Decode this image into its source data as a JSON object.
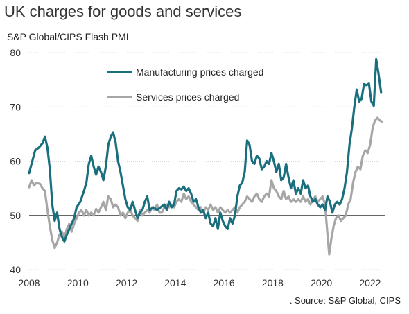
{
  "title": "UK charges for goods and services",
  "subtitle": "S&P Global/CIPS Flash PMI",
  "source": ". Source: S&P Global, CIPS",
  "chart_data": {
    "type": "line",
    "title": "UK charges for goods and services",
    "ylabel": "S&P Global/CIPS Flash PMI",
    "xlim": [
      2008,
      2022.6
    ],
    "ylim": [
      40,
      80
    ],
    "y_ticks": [
      40,
      50,
      60,
      70,
      80
    ],
    "x_ticks": [
      2008,
      2010,
      2012,
      2014,
      2016,
      2018,
      2020,
      2022
    ],
    "grid": true,
    "reference_line": 50,
    "legend": "top-left",
    "series": [
      {
        "name": "Manufacturing prices charged",
        "color": "#1a6f7f",
        "points": [
          [
            2008.0,
            57.8
          ],
          [
            2008.1,
            59.5
          ],
          [
            2008.25,
            62
          ],
          [
            2008.4,
            62.5
          ],
          [
            2008.55,
            63.3
          ],
          [
            2008.65,
            64.5
          ],
          [
            2008.75,
            62.5
          ],
          [
            2008.85,
            58.5
          ],
          [
            2008.95,
            52
          ],
          [
            2009.05,
            49
          ],
          [
            2009.15,
            50.5
          ],
          [
            2009.25,
            47.5
          ],
          [
            2009.35,
            46
          ],
          [
            2009.45,
            45.2
          ],
          [
            2009.55,
            46.5
          ],
          [
            2009.65,
            47.5
          ],
          [
            2009.75,
            48.5
          ],
          [
            2009.85,
            49.5
          ],
          [
            2009.95,
            51.5
          ],
          [
            2010.1,
            52.5
          ],
          [
            2010.25,
            54.5
          ],
          [
            2010.35,
            56
          ],
          [
            2010.45,
            59.5
          ],
          [
            2010.55,
            61
          ],
          [
            2010.65,
            59
          ],
          [
            2010.75,
            57.5
          ],
          [
            2010.85,
            59
          ],
          [
            2010.95,
            58
          ],
          [
            2011.05,
            56.5
          ],
          [
            2011.15,
            59
          ],
          [
            2011.25,
            63
          ],
          [
            2011.35,
            64.5
          ],
          [
            2011.45,
            65.3
          ],
          [
            2011.55,
            63.5
          ],
          [
            2011.65,
            60
          ],
          [
            2011.75,
            58
          ],
          [
            2011.85,
            55.5
          ],
          [
            2011.95,
            53
          ],
          [
            2012.05,
            51.5
          ],
          [
            2012.15,
            51
          ],
          [
            2012.25,
            52.5
          ],
          [
            2012.35,
            51
          ],
          [
            2012.45,
            49.5
          ],
          [
            2012.55,
            50.5
          ],
          [
            2012.65,
            51
          ],
          [
            2012.75,
            52.5
          ],
          [
            2012.85,
            53.5
          ],
          [
            2012.95,
            51
          ],
          [
            2013.1,
            51.5
          ],
          [
            2013.25,
            51
          ],
          [
            2013.4,
            51.5
          ],
          [
            2013.55,
            52
          ],
          [
            2013.65,
            51
          ],
          [
            2013.75,
            52.5
          ],
          [
            2013.85,
            51.5
          ],
          [
            2013.95,
            52
          ],
          [
            2014.05,
            54.5
          ],
          [
            2014.15,
            55
          ],
          [
            2014.25,
            54.8
          ],
          [
            2014.35,
            55.3
          ],
          [
            2014.45,
            54.5
          ],
          [
            2014.55,
            55
          ],
          [
            2014.65,
            54
          ],
          [
            2014.75,
            52.5
          ],
          [
            2014.85,
            53
          ],
          [
            2014.95,
            51.5
          ],
          [
            2015.05,
            50.5
          ],
          [
            2015.15,
            51
          ],
          [
            2015.25,
            49.5
          ],
          [
            2015.35,
            50.5
          ],
          [
            2015.45,
            48.5
          ],
          [
            2015.55,
            48
          ],
          [
            2015.65,
            49.5
          ],
          [
            2015.75,
            47.5
          ],
          [
            2015.85,
            50.5
          ],
          [
            2015.95,
            49
          ],
          [
            2016.05,
            48
          ],
          [
            2016.15,
            47.5
          ],
          [
            2016.25,
            49.5
          ],
          [
            2016.35,
            48.5
          ],
          [
            2016.45,
            50
          ],
          [
            2016.55,
            53.5
          ],
          [
            2016.65,
            55.5
          ],
          [
            2016.75,
            56
          ],
          [
            2016.85,
            58
          ],
          [
            2016.95,
            63.8
          ],
          [
            2017.05,
            63
          ],
          [
            2017.15,
            60
          ],
          [
            2017.25,
            59.5
          ],
          [
            2017.35,
            61
          ],
          [
            2017.45,
            60.5
          ],
          [
            2017.55,
            58.5
          ],
          [
            2017.65,
            59
          ],
          [
            2017.75,
            60
          ],
          [
            2017.85,
            59.5
          ],
          [
            2017.95,
            61.5
          ],
          [
            2018.05,
            60
          ],
          [
            2018.15,
            58
          ],
          [
            2018.25,
            59.5
          ],
          [
            2018.35,
            56.5
          ],
          [
            2018.45,
            57
          ],
          [
            2018.55,
            59.5
          ],
          [
            2018.65,
            57
          ],
          [
            2018.75,
            55
          ],
          [
            2018.85,
            56.5
          ],
          [
            2018.95,
            54
          ],
          [
            2019.05,
            55
          ],
          [
            2019.15,
            54
          ],
          [
            2019.25,
            56.5
          ],
          [
            2019.35,
            55
          ],
          [
            2019.45,
            55.5
          ],
          [
            2019.55,
            53.5
          ],
          [
            2019.65,
            52.5
          ],
          [
            2019.75,
            53
          ],
          [
            2019.85,
            52
          ],
          [
            2019.95,
            51.5
          ],
          [
            2020.05,
            52
          ],
          [
            2020.15,
            51
          ],
          [
            2020.25,
            53.5
          ],
          [
            2020.35,
            52.5
          ],
          [
            2020.45,
            50.5
          ],
          [
            2020.55,
            52
          ],
          [
            2020.65,
            52.5
          ],
          [
            2020.75,
            52
          ],
          [
            2020.85,
            53
          ],
          [
            2020.95,
            55
          ],
          [
            2021.05,
            58
          ],
          [
            2021.15,
            63
          ],
          [
            2021.25,
            66
          ],
          [
            2021.35,
            70
          ],
          [
            2021.45,
            73.2
          ],
          [
            2021.55,
            71
          ],
          [
            2021.65,
            71.5
          ],
          [
            2021.75,
            74.2
          ],
          [
            2021.85,
            74
          ],
          [
            2021.95,
            74.3
          ],
          [
            2022.05,
            71
          ],
          [
            2022.15,
            70.2
          ],
          [
            2022.25,
            78.8
          ],
          [
            2022.35,
            76
          ],
          [
            2022.45,
            72.7
          ]
        ]
      },
      {
        "name": "Services prices charged",
        "color": "#a6a6a6",
        "points": [
          [
            2008.0,
            55.2
          ],
          [
            2008.1,
            56.5
          ],
          [
            2008.2,
            55.5
          ],
          [
            2008.3,
            56
          ],
          [
            2008.45,
            55.8
          ],
          [
            2008.55,
            55
          ],
          [
            2008.65,
            54.5
          ],
          [
            2008.75,
            51
          ],
          [
            2008.85,
            48
          ],
          [
            2008.95,
            45.5
          ],
          [
            2009.05,
            44
          ],
          [
            2009.15,
            45
          ],
          [
            2009.25,
            46.5
          ],
          [
            2009.35,
            47
          ],
          [
            2009.45,
            46
          ],
          [
            2009.55,
            47.5
          ],
          [
            2009.65,
            48.5
          ],
          [
            2009.75,
            47
          ],
          [
            2009.85,
            48.5
          ],
          [
            2009.95,
            49.5
          ],
          [
            2010.05,
            50.5
          ],
          [
            2010.15,
            51
          ],
          [
            2010.25,
            50
          ],
          [
            2010.35,
            51
          ],
          [
            2010.45,
            50
          ],
          [
            2010.55,
            50.5
          ],
          [
            2010.65,
            50
          ],
          [
            2010.75,
            51.2
          ],
          [
            2010.85,
            50.5
          ],
          [
            2010.95,
            51.5
          ],
          [
            2011.05,
            52.5
          ],
          [
            2011.15,
            51
          ],
          [
            2011.25,
            53.5
          ],
          [
            2011.35,
            53
          ],
          [
            2011.45,
            51.5
          ],
          [
            2011.55,
            52
          ],
          [
            2011.65,
            51.5
          ],
          [
            2011.75,
            50
          ],
          [
            2011.85,
            50.5
          ],
          [
            2011.95,
            49.5
          ],
          [
            2012.05,
            50.5
          ],
          [
            2012.15,
            51
          ],
          [
            2012.25,
            50
          ],
          [
            2012.35,
            49.5
          ],
          [
            2012.45,
            49
          ],
          [
            2012.55,
            51
          ],
          [
            2012.65,
            50
          ],
          [
            2012.75,
            50.5
          ],
          [
            2012.85,
            51
          ],
          [
            2012.95,
            50.5
          ],
          [
            2013.05,
            51.5
          ],
          [
            2013.15,
            51
          ],
          [
            2013.25,
            52
          ],
          [
            2013.35,
            50.5
          ],
          [
            2013.45,
            50.5
          ],
          [
            2013.55,
            51.5
          ],
          [
            2013.65,
            52
          ],
          [
            2013.75,
            51.5
          ],
          [
            2013.85,
            52
          ],
          [
            2013.95,
            51.5
          ],
          [
            2014.05,
            52.5
          ],
          [
            2014.15,
            53
          ],
          [
            2014.25,
            52.5
          ],
          [
            2014.35,
            54
          ],
          [
            2014.45,
            53
          ],
          [
            2014.55,
            53.5
          ],
          [
            2014.65,
            52.5
          ],
          [
            2014.75,
            52
          ],
          [
            2014.85,
            51.5
          ],
          [
            2014.95,
            51
          ],
          [
            2015.05,
            51.5
          ],
          [
            2015.15,
            50.5
          ],
          [
            2015.25,
            51.5
          ],
          [
            2015.35,
            51
          ],
          [
            2015.45,
            52
          ],
          [
            2015.55,
            51
          ],
          [
            2015.65,
            51.5
          ],
          [
            2015.75,
            50.5
          ],
          [
            2015.85,
            51.5
          ],
          [
            2015.95,
            51
          ],
          [
            2016.05,
            50.5
          ],
          [
            2016.15,
            51
          ],
          [
            2016.25,
            50.5
          ],
          [
            2016.35,
            51
          ],
          [
            2016.45,
            51.5
          ],
          [
            2016.55,
            50.5
          ],
          [
            2016.65,
            51.5
          ],
          [
            2016.75,
            52
          ],
          [
            2016.85,
            52.5
          ],
          [
            2016.95,
            53.5
          ],
          [
            2017.05,
            53
          ],
          [
            2017.15,
            52.5
          ],
          [
            2017.25,
            53.5
          ],
          [
            2017.35,
            54
          ],
          [
            2017.45,
            53
          ],
          [
            2017.55,
            52.5
          ],
          [
            2017.65,
            53.5
          ],
          [
            2017.75,
            54
          ],
          [
            2017.85,
            53.5
          ],
          [
            2017.95,
            56.5
          ],
          [
            2018.05,
            55
          ],
          [
            2018.15,
            54.5
          ],
          [
            2018.25,
            53.5
          ],
          [
            2018.35,
            53
          ],
          [
            2018.45,
            54.5
          ],
          [
            2018.55,
            53
          ],
          [
            2018.65,
            53.5
          ],
          [
            2018.75,
            52.5
          ],
          [
            2018.85,
            53
          ],
          [
            2018.95,
            52.5
          ],
          [
            2019.05,
            53
          ],
          [
            2019.15,
            52.5
          ],
          [
            2019.25,
            53.5
          ],
          [
            2019.35,
            52.5
          ],
          [
            2019.45,
            53
          ],
          [
            2019.55,
            52
          ],
          [
            2019.65,
            53
          ],
          [
            2019.75,
            53.5
          ],
          [
            2019.85,
            52.5
          ],
          [
            2019.95,
            53
          ],
          [
            2020.05,
            53.5
          ],
          [
            2020.15,
            52
          ],
          [
            2020.25,
            46.5
          ],
          [
            2020.32,
            42.8
          ],
          [
            2020.4,
            45.5
          ],
          [
            2020.5,
            48
          ],
          [
            2020.6,
            49.5
          ],
          [
            2020.7,
            50
          ],
          [
            2020.8,
            49
          ],
          [
            2020.9,
            49.5
          ],
          [
            2021.0,
            50
          ],
          [
            2021.1,
            52
          ],
          [
            2021.2,
            53
          ],
          [
            2021.3,
            56
          ],
          [
            2021.4,
            58
          ],
          [
            2021.5,
            59
          ],
          [
            2021.6,
            58.5
          ],
          [
            2021.7,
            61
          ],
          [
            2021.8,
            62
          ],
          [
            2021.9,
            61.5
          ],
          [
            2022.0,
            63
          ],
          [
            2022.1,
            66
          ],
          [
            2022.2,
            67.5
          ],
          [
            2022.3,
            68
          ],
          [
            2022.4,
            67.5
          ],
          [
            2022.48,
            67.3
          ]
        ]
      }
    ]
  }
}
